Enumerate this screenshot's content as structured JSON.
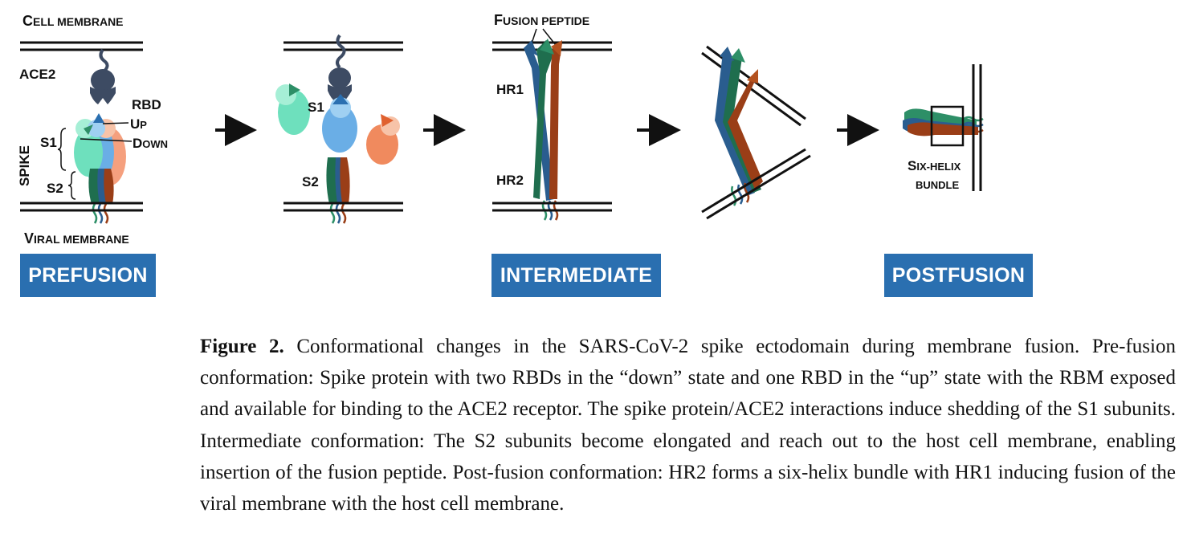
{
  "labels": {
    "cell_membrane_1": "C",
    "cell_membrane_2": "ELL MEMBRANE",
    "ace2": "ACE2",
    "rbd": "RBD",
    "up_1": "U",
    "up_2": "P",
    "down_1": "D",
    "down_2": "OWN",
    "s1": "S1",
    "s2": "S2",
    "spike": "SPIKE",
    "viral_membrane_1": "V",
    "viral_membrane_2": "IRAL MEMBRANE",
    "stage2_s1": "S1",
    "stage2_s2": "S2",
    "fusion_peptide_1": "F",
    "fusion_peptide_2": "USION PEPTIDE",
    "hr1": "HR1",
    "hr2": "HR2",
    "six_helix_1": "S",
    "six_helix_2": "IX-HELIX",
    "bundle": "BUNDLE"
  },
  "stages": {
    "prefusion": "PREFUSION",
    "intermediate": "INTERMEDIATE",
    "postfusion": "POSTFUSION"
  },
  "caption": {
    "label": "Figure 2.",
    "text": " Conformational changes in the SARS-CoV-2 spike ectodomain during membrane fusion. Pre-fusion conformation: Spike protein with two RBDs in the “down” state and one RBD in the “up” state with the RBM exposed and available for binding to the ACE2 receptor. The spike protein/ACE2 interactions induce shedding of the S1 subunits. Intermediate conformation: The S2 subunits become elongated and reach out to the host cell membrane, enabling insertion of the fusion peptide. Post-fusion conformation: HR2 forms a six-helix bundle with HR1 inducing fusion of the viral membrane with the host cell membrane."
  },
  "colors": {
    "stage_box": "#2a6fb0",
    "ace2": "#3d4b63",
    "teal_light": "#6ee0bd",
    "teal_dark": "#1f6e4e",
    "blue_light": "#6aaee6",
    "blue_dark": "#2a5d8f",
    "orange_light": "#f5b08a",
    "orange_dark": "#9a3e17"
  }
}
